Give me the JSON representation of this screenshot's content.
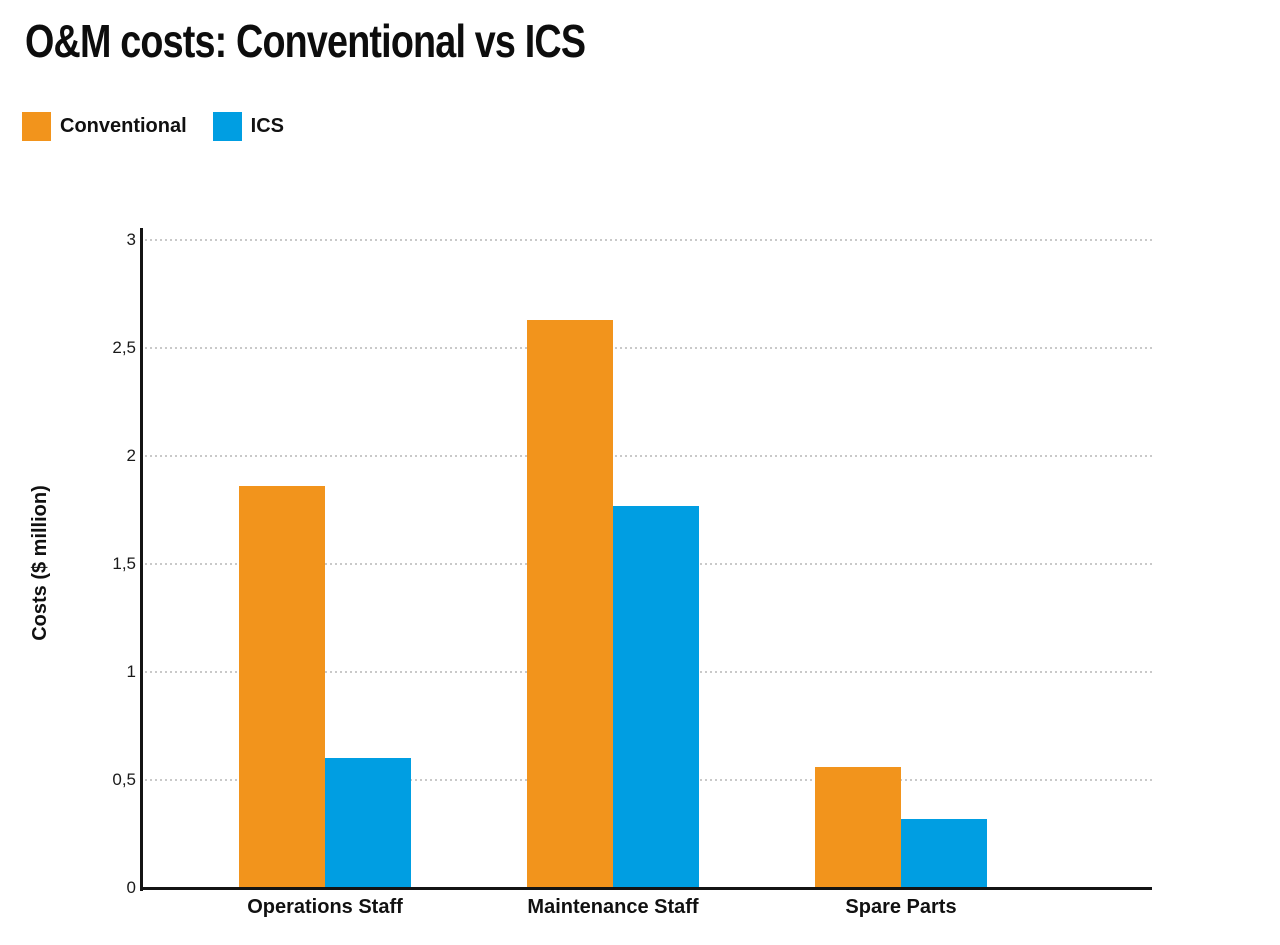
{
  "page": {
    "background_color": "#ffffff"
  },
  "chart_data": {
    "type": "bar",
    "title": "O&M costs: Conventional vs ICS",
    "categories": [
      "Operations Staff",
      "Maintenance Staff",
      "Spare Parts"
    ],
    "series": [
      {
        "name": "Conventional",
        "color": "#F2941C",
        "values": [
          1.86,
          2.63,
          0.56
        ]
      },
      {
        "name": "ICS",
        "color": "#009EE2",
        "values": [
          0.6,
          1.77,
          0.32
        ]
      }
    ],
    "xlabel": "",
    "ylabel": "Costs ($ million)",
    "ylim": [
      0,
      3
    ],
    "yticks": [
      0,
      0.5,
      1,
      1.5,
      2,
      2.5,
      3
    ],
    "ytick_labels": [
      "0",
      "0,5",
      "1",
      "1,5",
      "2",
      "2,5",
      "3"
    ],
    "decimal_separator": ",",
    "grid": "horizontal-dotted",
    "gridline_color": "#c9c9c9",
    "axis_color": "#141414",
    "text_color": "#111111",
    "legend_position": "top-left"
  }
}
